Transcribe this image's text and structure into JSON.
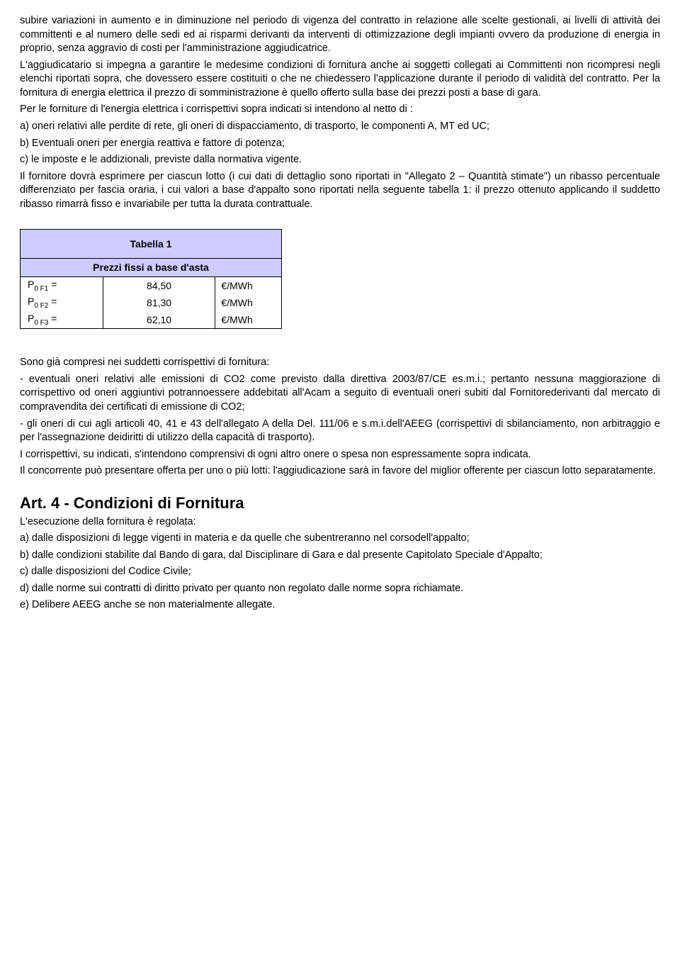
{
  "p1": "subire variazioni in aumento e in diminuzione nel periodo di vigenza del contratto in relazione alle scelte gestionali, ai livelli di attività dei committenti e al numero delle sedi ed ai risparmi derivanti da interventi di ottimizzazione degli impianti ovvero da produzione di energia in proprio, senza aggravio di costi per l'amministrazione aggiudicatrice.",
  "p2": "L'aggiudicatario si impegna a garantire le medesime condizioni di fornitura anche ai soggetti collegati ai Committenti non ricompresi negli elenchi riportati sopra, che dovessero essere costituiti o che ne chiedessero l'applicazione durante il periodo di validità del contratto. Per la fornitura di energia elettrica il prezzo di somministrazione è quello offerto sulla base dei prezzi posti a base di gara.",
  "p3": "Per le forniture di l'energia elettrica i corrispettivi sopra indicati si intendono al netto di :",
  "p4": "a) oneri relativi alle perdite di rete, gli oneri di dispacciamento, di trasporto, le componenti A, MT ed UC;",
  "p5": "b) Eventuali oneri per energia reattiva e fattore di potenza;",
  "p6": "c) le imposte e le addizionali, previste dalla normativa vigente.",
  "p7": "Il fornitore dovrà esprimere per ciascun lotto (i cui dati di dettaglio sono riportati in \"Allegato 2 – Quantità stimate\") un ribasso percentuale differenziato per fascia oraria, i cui valori a base d'appalto sono riportati nella seguente tabella 1: il prezzo ottenuto applicando il suddetto ribasso rimarrà  fisso e invariabile per tutta la durata contrattuale.",
  "table": {
    "title": "Tabella 1",
    "subtitle": "Prezzi fissi a base d'asta",
    "rows": [
      {
        "label_main": "P",
        "label_sub": "0 F1",
        "eq": " =",
        "value": "84,50",
        "unit": "€/MWh"
      },
      {
        "label_main": "P",
        "label_sub": "0 F2",
        "eq": " =",
        "value": "81,30",
        "unit": "€/MWh"
      },
      {
        "label_main": "P",
        "label_sub": "0 F3",
        "eq": " =",
        "value": "62,10",
        "unit": "€/MWh"
      }
    ]
  },
  "p8": "Sono  già compresi nei suddetti corrispettivi di fornitura:",
  "p9": "- eventuali oneri relativi alle emissioni di CO2 come previsto dalla direttiva 2003/87/CE es.m.i.; pertanto nessuna maggiorazione di corrispettivo od oneri aggiuntivi potrannoessere addebitati all'Acam a seguito di eventuali oneri subiti dal Fornitorederivanti dal mercato di compravendita dei certificati di emissione di CO2;",
  "p10": "- gli oneri di cui agli articoli 40, 41 e 43 dell'allegato A della Del. 111/06 e s.m.i.dell'AEEG (corrispettivi di sbilanciamento, non arbitraggio e per l'assegnazione deidiritti di utilizzo della capacità di trasporto).",
  "p11": "I corrispettivi, su indicati, s'intendono comprensivi di ogni altro onere o spesa non espressamente sopra indicata.",
  "p12": "Il concorrente può presentare offerta per uno o più lotti: l'aggiudicazione sarà in favore del miglior offerente  per ciascun lotto separatamente.",
  "art4_title": "Art. 4 - Condizioni di Fornitura",
  "a1": "L'esecuzione della fornitura è regolata:",
  "a2": "a) dalle disposizioni di legge vigenti in materia e da quelle che subentreranno nel corsodell'appalto;",
  "a3": "b) dalle condizioni stabilite dal Bando di gara, dal Disciplinare di Gara e dal presente Capitolato Speciale d'Appalto;",
  "a4": "c) dalle disposizioni del Codice Civile;",
  "a5": "d) dalle norme sui contratti di diritto privato per quanto non regolato dalle norme sopra richiamate.",
  "a6": "e) Delibere AEEG anche se non materialmente allegate."
}
